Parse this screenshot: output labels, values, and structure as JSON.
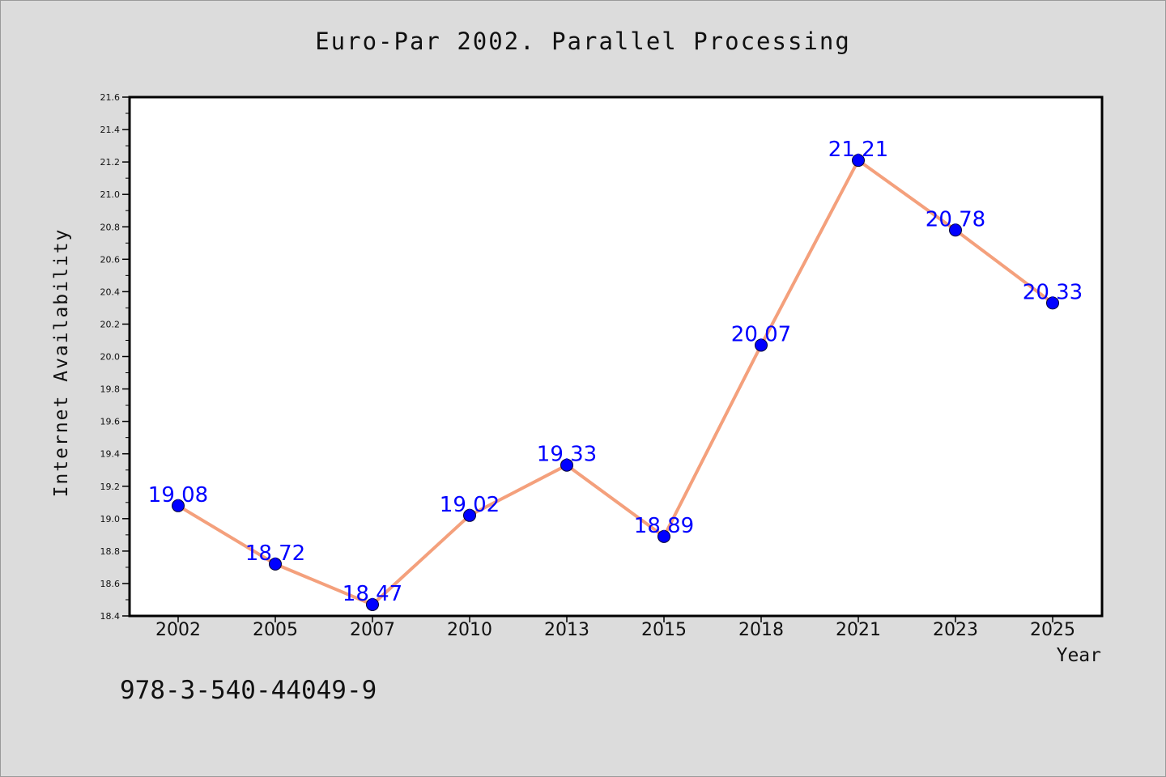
{
  "chart_data": {
    "type": "line",
    "title": "Euro-Par 2002. Parallel Processing",
    "xlabel": "Year",
    "ylabel": "Internet Availability",
    "categories": [
      "2002",
      "2005",
      "2007",
      "2010",
      "2013",
      "2015",
      "2018",
      "2021",
      "2023",
      "2025"
    ],
    "values": [
      19.08,
      18.72,
      18.47,
      19.02,
      19.33,
      18.89,
      20.07,
      21.21,
      20.78,
      20.33
    ],
    "data_labels": [
      "19.08",
      "18.72",
      "18.47",
      "19.02",
      "19.33",
      "18.89",
      "20.07",
      "21.21",
      "20.78",
      "20.33"
    ],
    "ylim": [
      18.4,
      21.6
    ],
    "yticks": [
      "18.4",
      "18.6",
      "18.8",
      "19.0",
      "19.2",
      "19.4",
      "19.6",
      "19.8",
      "20.0",
      "20.2",
      "20.4",
      "20.6",
      "20.8",
      "21.0",
      "21.2",
      "21.4",
      "21.6"
    ],
    "grid": false,
    "line_color": "#f4a07c",
    "marker_color": "#0000ff",
    "label_color": "#0000ff"
  },
  "footnote": "978-3-540-44049-9"
}
